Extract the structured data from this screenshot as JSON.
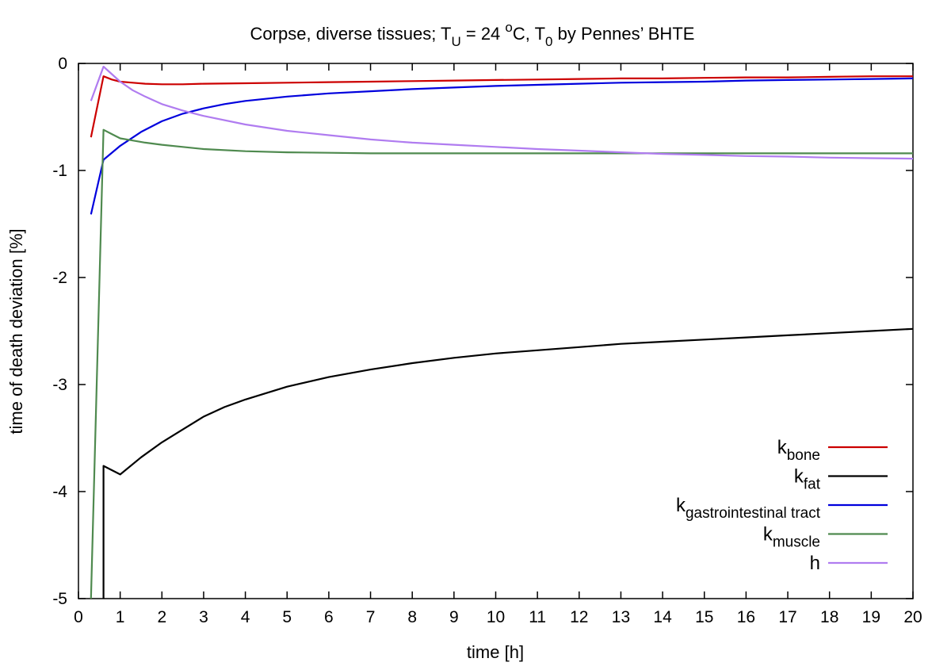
{
  "chart_data": {
    "type": "line",
    "title_parts": {
      "prefix": "Corpse, diverse tissues; T",
      "sub1": "U",
      "mid": " = 24 ",
      "sup": "o",
      "mid2": "C, T",
      "sub2": "0",
      "suffix": " by Pennes’ BHTE"
    },
    "xlabel": "time [h]",
    "ylabel": "time of death deviation [%]",
    "xlim": [
      0,
      20
    ],
    "ylim": [
      -5,
      0
    ],
    "xticks": [
      "0",
      "1",
      "2",
      "3",
      "4",
      "5",
      "6",
      "7",
      "8",
      "9",
      "10",
      "11",
      "12",
      "13",
      "14",
      "15",
      "16",
      "17",
      "18",
      "19",
      "20"
    ],
    "yticks": [
      "0",
      "-1",
      "-2",
      "-3",
      "-4",
      "-5"
    ],
    "grid": false,
    "legend_position": "bottom-right",
    "series": [
      {
        "name_main": "k",
        "name_sub": "bone",
        "color": "#cc0000",
        "x": [
          0.3,
          0.6,
          0.8,
          1.0,
          1.3,
          1.6,
          2.0,
          2.5,
          3,
          4,
          5,
          6,
          7,
          8,
          9,
          10,
          11,
          12,
          13,
          14,
          15,
          16,
          17,
          18,
          19,
          20
        ],
        "y": [
          -0.69,
          -0.12,
          -0.15,
          -0.17,
          -0.18,
          -0.19,
          -0.195,
          -0.195,
          -0.19,
          -0.185,
          -0.18,
          -0.175,
          -0.17,
          -0.165,
          -0.16,
          -0.155,
          -0.15,
          -0.145,
          -0.14,
          -0.14,
          -0.135,
          -0.13,
          -0.13,
          -0.125,
          -0.12,
          -0.12
        ]
      },
      {
        "name_main": "k",
        "name_sub": "fat",
        "color": "#000000",
        "x": [
          0.6,
          0.6,
          1.0,
          1.5,
          2.0,
          2.5,
          3,
          3.5,
          4,
          4.5,
          5,
          6,
          7,
          8,
          9,
          10,
          11,
          12,
          13,
          14,
          15,
          16,
          17,
          18,
          19,
          20
        ],
        "y": [
          -5.0,
          -3.76,
          -3.84,
          -3.68,
          -3.54,
          -3.42,
          -3.3,
          -3.21,
          -3.14,
          -3.08,
          -3.02,
          -2.93,
          -2.86,
          -2.8,
          -2.75,
          -2.71,
          -2.68,
          -2.65,
          -2.62,
          -2.6,
          -2.58,
          -2.56,
          -2.54,
          -2.52,
          -2.5,
          -2.48
        ]
      },
      {
        "name_main": "k",
        "name_sub": "gastrointestinal tract",
        "color": "#0000dd",
        "x": [
          0.3,
          0.6,
          1.0,
          1.5,
          2.0,
          2.5,
          3,
          3.5,
          4,
          5,
          6,
          7,
          8,
          9,
          10,
          11,
          12,
          13,
          14,
          15,
          16,
          17,
          18,
          19,
          20
        ],
        "y": [
          -1.41,
          -0.9,
          -0.77,
          -0.64,
          -0.54,
          -0.47,
          -0.42,
          -0.38,
          -0.35,
          -0.31,
          -0.28,
          -0.26,
          -0.24,
          -0.225,
          -0.21,
          -0.2,
          -0.19,
          -0.18,
          -0.175,
          -0.17,
          -0.16,
          -0.155,
          -0.15,
          -0.145,
          -0.14
        ]
      },
      {
        "name_main": "k",
        "name_sub": "muscle",
        "color": "#4f8a4f",
        "x": [
          0.3,
          0.6,
          0.8,
          1.0,
          1.3,
          1.6,
          2.0,
          2.5,
          3,
          4,
          5,
          6,
          7,
          8,
          9,
          10,
          11,
          12,
          13,
          14,
          15,
          16,
          17,
          18,
          19,
          20
        ],
        "y": [
          -5.0,
          -0.62,
          -0.66,
          -0.7,
          -0.72,
          -0.74,
          -0.76,
          -0.78,
          -0.8,
          -0.82,
          -0.83,
          -0.835,
          -0.84,
          -0.84,
          -0.84,
          -0.84,
          -0.84,
          -0.84,
          -0.84,
          -0.84,
          -0.84,
          -0.84,
          -0.84,
          -0.84,
          -0.84,
          -0.84
        ]
      },
      {
        "name_main": "h",
        "name_sub": "",
        "color": "#b07cf0",
        "x": [
          0.3,
          0.6,
          0.8,
          1.0,
          1.3,
          1.6,
          2.0,
          2.5,
          3,
          4,
          5,
          6,
          7,
          8,
          9,
          10,
          11,
          12,
          13,
          14,
          15,
          16,
          17,
          18,
          19,
          20
        ],
        "y": [
          -0.35,
          -0.03,
          -0.1,
          -0.17,
          -0.25,
          -0.31,
          -0.38,
          -0.44,
          -0.49,
          -0.57,
          -0.63,
          -0.67,
          -0.71,
          -0.74,
          -0.76,
          -0.78,
          -0.8,
          -0.815,
          -0.83,
          -0.845,
          -0.855,
          -0.865,
          -0.87,
          -0.88,
          -0.885,
          -0.89
        ]
      }
    ]
  }
}
